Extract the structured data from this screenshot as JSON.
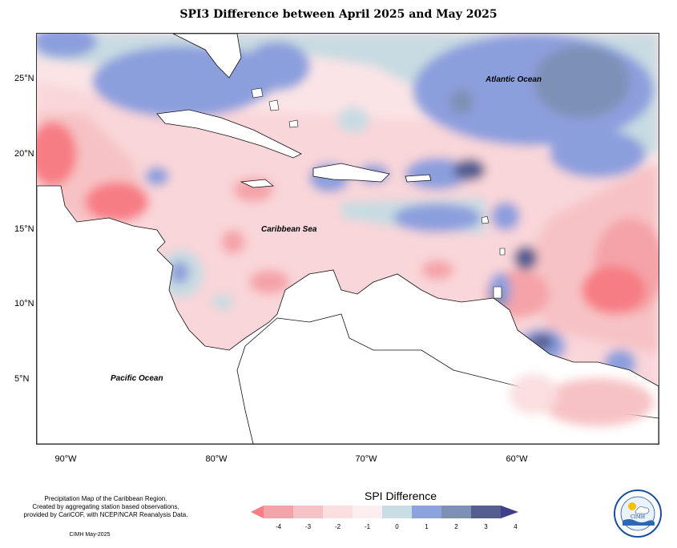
{
  "title": "SPI3 Difference between April 2025 and May 2025",
  "labels": {
    "atlantic": "Atlantic Ocean",
    "caribbean": "Caribbean Sea",
    "pacific": "Pacific Ocean"
  },
  "y_axis": [
    "25°N",
    "20°N",
    "15°N",
    "10°N",
    "5°N"
  ],
  "x_axis": [
    "90°W",
    "80°W",
    "70°W",
    "60°W"
  ],
  "footer": {
    "line1": "Precipitation Map of the Caribbean Region.",
    "line2": "Created by aggregating station based observations,",
    "line3": "provided by CariCOF, with NCEP/NCAR Reanalysis Data.",
    "credit": "CIMH May-2025"
  },
  "legend": {
    "title": "SPI Difference",
    "ticks": [
      "-4",
      "-3",
      "-2",
      "-1",
      "0",
      "1",
      "2",
      "3",
      "4"
    ],
    "colors": [
      "#f77d85",
      "#f4a3a8",
      "#f7c2c5",
      "#fbdee0",
      "#fdeef0",
      "#c9dde4",
      "#8da3e0",
      "#7d91b6",
      "#545d90",
      "#3f3f8c"
    ]
  },
  "logo": {
    "top_text": "Caribbean Institute for",
    "bottom_text": "Meteorology and Hydrology",
    "abbr": "CIMH"
  }
}
